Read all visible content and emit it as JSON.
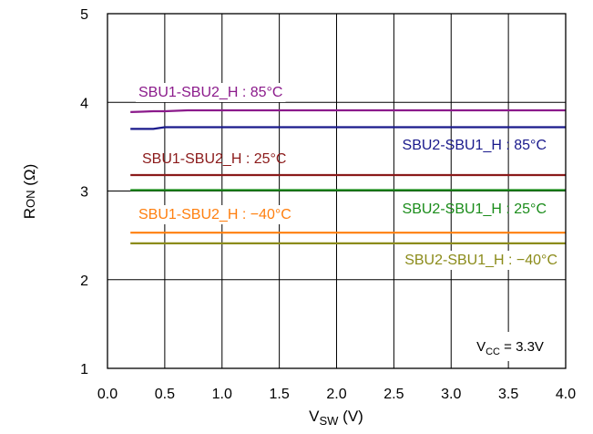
{
  "chart_data": {
    "type": "line",
    "xlabel": "V",
    "xlabel_sub": "SW",
    "xlabel_unit": " (V)",
    "ylabel": "R",
    "ylabel_sub": "ON",
    "ylabel_unit": " (Ω)",
    "xlim": [
      0.0,
      4.0
    ],
    "ylim": [
      1,
      5
    ],
    "xticks": [
      "0.0",
      "0.5",
      "1.0",
      "1.5",
      "2.0",
      "2.5",
      "3.0",
      "3.5",
      "4.0"
    ],
    "yticks": [
      "1",
      "2",
      "3",
      "4",
      "5"
    ],
    "grid": true,
    "annotation": {
      "main": "V",
      "sub": "CC",
      "rest": " = 3.3V"
    },
    "series": [
      {
        "name": "SBU1-SBU2_H : 85°C",
        "color": "#8b1a8b",
        "x": [
          0.2,
          0.3,
          0.4,
          0.5,
          0.6,
          0.7,
          1.0,
          2.0,
          3.0,
          4.0
        ],
        "y": [
          3.89,
          3.895,
          3.9,
          3.9,
          3.905,
          3.91,
          3.91,
          3.91,
          3.91,
          3.91
        ]
      },
      {
        "name": "SBU2-SBU1_H : 85°C",
        "color": "#1a1a8c",
        "x": [
          0.2,
          0.4,
          0.5,
          1.0,
          2.0,
          3.0,
          4.0
        ],
        "y": [
          3.7,
          3.7,
          3.72,
          3.72,
          3.72,
          3.72,
          3.72
        ]
      },
      {
        "name": "SBU1-SBU2_H : 25°C",
        "color": "#8b1a1a",
        "x": [
          0.2,
          1.0,
          2.0,
          3.0,
          4.0
        ],
        "y": [
          3.18,
          3.18,
          3.18,
          3.18,
          3.18
        ]
      },
      {
        "name": "SBU2-SBU1_H : 25°C",
        "color": "#1a8c1a",
        "x": [
          0.2,
          1.0,
          2.0,
          3.0,
          4.0
        ],
        "y": [
          3.01,
          3.01,
          3.01,
          3.01,
          3.01
        ]
      },
      {
        "name": "SBU1-SBU2_H : −40°C",
        "color": "#ff7f0e",
        "x": [
          0.2,
          1.0,
          2.0,
          3.0,
          4.0
        ],
        "y": [
          2.53,
          2.53,
          2.53,
          2.53,
          2.53
        ]
      },
      {
        "name": "SBU2-SBU1_H : −40°C",
        "color": "#8b8b1a",
        "x": [
          0.2,
          1.0,
          2.0,
          3.0,
          4.0
        ],
        "y": [
          2.41,
          2.41,
          2.41,
          2.41,
          2.41
        ]
      }
    ]
  }
}
